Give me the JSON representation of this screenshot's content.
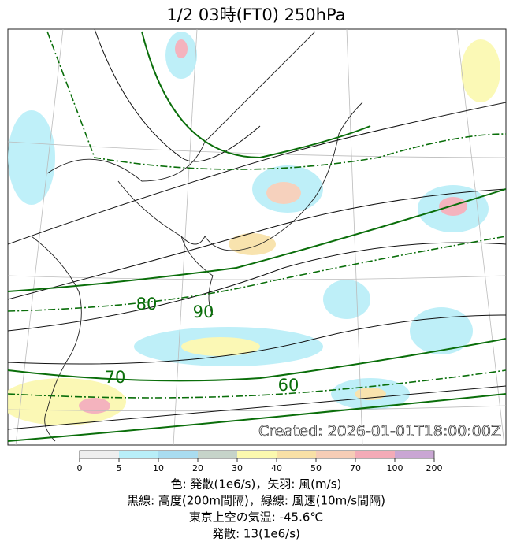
{
  "title": "1/2  03時(FT0)    250hPa",
  "contour_labels": [
    "80",
    "90",
    "70",
    "60"
  ],
  "created": "Created: 2026-01-01T18:00:00Z",
  "colorbar": {
    "ticks": [
      0,
      5,
      10,
      20,
      30,
      40,
      50,
      70,
      100,
      200
    ],
    "colors": [
      "#eeeeee",
      "#b8eef8",
      "#a9dcf0",
      "#c6d3c9",
      "#fbf8ae",
      "#f8e0a6",
      "#f6cdb6",
      "#f3abb7",
      "#c9a6d3"
    ]
  },
  "legend_lines": [
    "色: 発散(1e6/s)，矢羽: 風(m/s)",
    "黒線: 高度(200m間隔)，緑線: 風速(10m/s間隔)",
    "東京上空の気温: -45.6℃",
    "発散: 13(1e6/s)"
  ]
}
